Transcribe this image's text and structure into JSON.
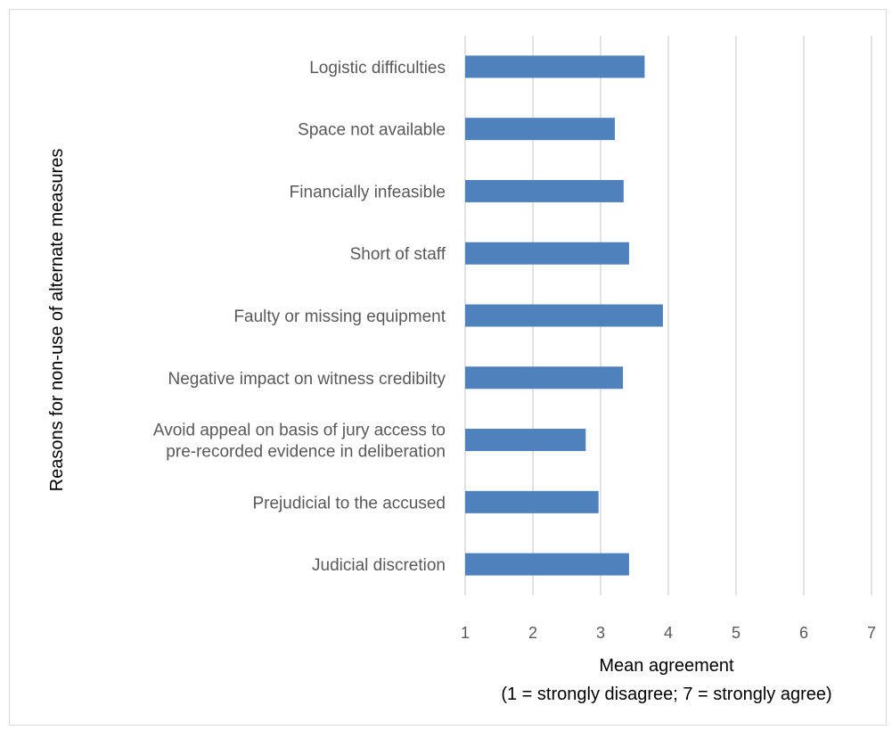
{
  "chart_data": {
    "type": "bar",
    "orientation": "horizontal",
    "categories": [
      "Logistic difficulties",
      "Space not available",
      "Financially infeasible",
      "Short of staff",
      "Faulty or missing equipment",
      "Negative impact on witness credibilty",
      "Avoid appeal on basis of jury access to pre-recorded evidence in deliberation",
      "Prejudicial to the accused",
      "Judicial discretion"
    ],
    "values": [
      3.65,
      3.21,
      3.34,
      3.42,
      3.92,
      3.33,
      2.78,
      2.97,
      3.42
    ],
    "xlabel": "Mean agreement",
    "xlabel_note": "(1 = strongly disagree; 7 = strongly agree)",
    "ylabel": "Reasons for non-use of alternate measures",
    "xlim": [
      1,
      7
    ],
    "xticks": [
      "1",
      "2",
      "3",
      "4",
      "5",
      "6",
      "7"
    ],
    "grid": "vertical",
    "legend": "none",
    "bar_color": "#4f81bd"
  }
}
